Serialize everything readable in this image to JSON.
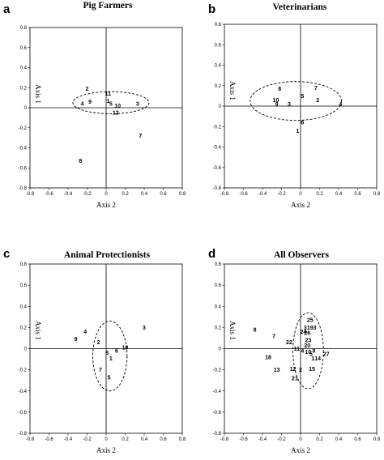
{
  "chart_data": [
    {
      "type": "scatter",
      "panel_label": "a",
      "title": "Pig Farmers",
      "xlabel": "Axis 2",
      "ylabel": "Axis 1",
      "xlim": [
        -0.8,
        0.8
      ],
      "ylim": [
        -0.8,
        0.8
      ],
      "x_ticks": [
        "-0.8",
        "-0.6",
        "-0.4",
        "-0.2",
        "0",
        "0.2",
        "0.4",
        "0.6",
        "0.8"
      ],
      "y_ticks": [
        "0.8",
        "0.6",
        "0.4",
        "0.2",
        "0",
        "-0.2",
        "-0.4",
        "-0.6",
        "-0.8"
      ],
      "points": [
        {
          "label": "2",
          "x": -0.2,
          "y": 0.19
        },
        {
          "label": "4",
          "x": -0.25,
          "y": 0.04
        },
        {
          "label": "9",
          "x": -0.17,
          "y": 0.06
        },
        {
          "label": "11",
          "x": 0.02,
          "y": 0.14
        },
        {
          "label": "1",
          "x": 0.02,
          "y": 0.07
        },
        {
          "label": "5",
          "x": 0.05,
          "y": 0.04
        },
        {
          "label": "10",
          "x": 0.12,
          "y": 0.02
        },
        {
          "label": "3",
          "x": 0.33,
          "y": 0.04
        },
        {
          "label": "12",
          "x": 0.1,
          "y": -0.05
        },
        {
          "label": "7",
          "x": 0.36,
          "y": -0.28
        },
        {
          "label": "8",
          "x": -0.27,
          "y": -0.53
        }
      ],
      "ellipse": {
        "cx": 0.05,
        "cy": 0.05,
        "rx": 0.4,
        "ry": 0.11
      }
    },
    {
      "type": "scatter",
      "panel_label": "b",
      "title": "Veterinarians",
      "xlabel": "Axis 2",
      "ylabel": "Axis 1",
      "xlim": [
        -0.8,
        0.8
      ],
      "ylim": [
        -0.8,
        0.8
      ],
      "x_ticks": [
        "-0.8",
        "-0.6",
        "-0.4",
        "-0.2",
        "0",
        "0.2",
        "0.4",
        "0.6",
        "0.8"
      ],
      "y_ticks": [
        "0.8",
        "0.6",
        "0.4",
        "0.2",
        "0",
        "-0.2",
        "-0.4",
        "-0.6",
        "-0.8"
      ],
      "points": [
        {
          "label": "8",
          "x": -0.22,
          "y": 0.17
        },
        {
          "label": "7",
          "x": 0.16,
          "y": 0.18
        },
        {
          "label": "5",
          "x": 0.02,
          "y": 0.1
        },
        {
          "label": "2",
          "x": 0.18,
          "y": 0.06
        },
        {
          "label": "10",
          "x": -0.26,
          "y": 0.06
        },
        {
          "label": "9",
          "x": -0.25,
          "y": 0.02
        },
        {
          "label": "3",
          "x": -0.12,
          "y": 0.02
        },
        {
          "label": "4",
          "x": 0.42,
          "y": 0.02
        },
        {
          "label": "6",
          "x": 0.02,
          "y": -0.16
        },
        {
          "label": "1",
          "x": -0.03,
          "y": -0.24
        }
      ],
      "ellipse": {
        "cx": -0.05,
        "cy": 0.05,
        "rx": 0.48,
        "ry": 0.19
      }
    },
    {
      "type": "scatter",
      "panel_label": "c",
      "title": "Animal Protectionists",
      "xlabel": "Axis 2",
      "ylabel": "Axis 1",
      "xlim": [
        -0.8,
        0.8
      ],
      "ylim": [
        -0.8,
        0.8
      ],
      "x_ticks": [
        "-0.8",
        "-0.6",
        "-0.4",
        "-0.2",
        "0",
        "0.2",
        "0.4",
        "0.6",
        "0.8"
      ],
      "y_ticks": [
        "0.8",
        "0.6",
        "0.4",
        "0.2",
        "0",
        "-0.2",
        "-0.4",
        "-0.6",
        "-0.8"
      ],
      "points": [
        {
          "label": "3",
          "x": 0.4,
          "y": 0.2
        },
        {
          "label": "4",
          "x": -0.22,
          "y": 0.16
        },
        {
          "label": "9",
          "x": -0.32,
          "y": 0.09
        },
        {
          "label": "2",
          "x": -0.08,
          "y": 0.06
        },
        {
          "label": "10",
          "x": 0.2,
          "y": 0.01
        },
        {
          "label": "6",
          "x": 0.11,
          "y": -0.02
        },
        {
          "label": "8",
          "x": 0.01,
          "y": -0.04
        },
        {
          "label": "1",
          "x": 0.05,
          "y": -0.09
        },
        {
          "label": "7",
          "x": -0.06,
          "y": -0.2
        },
        {
          "label": "5",
          "x": 0.03,
          "y": -0.27
        }
      ],
      "ellipse": {
        "cx": 0.04,
        "cy": -0.07,
        "rx": 0.18,
        "ry": 0.33
      }
    },
    {
      "type": "scatter",
      "panel_label": "d",
      "title": "All Observers",
      "xlabel": "Axis 2",
      "ylabel": "Axis 1",
      "xlim": [
        -0.8,
        0.8
      ],
      "ylim": [
        -0.8,
        0.8
      ],
      "x_ticks": [
        "-0.8",
        "-0.6",
        "-0.4",
        "-0.2",
        "0",
        "0.2",
        "0.4",
        "0.6",
        "0.8"
      ],
      "y_ticks": [
        "0.8",
        "0.6",
        "0.4",
        "0.2",
        "0",
        "-0.2",
        "-0.4",
        "-0.6",
        "-0.8"
      ],
      "points": [
        {
          "label": "25",
          "x": 0.1,
          "y": 0.27
        },
        {
          "label": "3",
          "x": 0.05,
          "y": 0.2
        },
        {
          "label": "19",
          "x": 0.1,
          "y": 0.2
        },
        {
          "label": "3",
          "x": 0.15,
          "y": 0.2
        },
        {
          "label": "8",
          "x": -0.48,
          "y": 0.18
        },
        {
          "label": "24",
          "x": 0.03,
          "y": 0.16
        },
        {
          "label": "26",
          "x": 0.07,
          "y": 0.15
        },
        {
          "label": "7",
          "x": -0.28,
          "y": 0.12
        },
        {
          "label": "23",
          "x": 0.08,
          "y": 0.08
        },
        {
          "label": "22",
          "x": -0.12,
          "y": 0.06
        },
        {
          "label": "20",
          "x": 0.07,
          "y": 0.03
        },
        {
          "label": "11",
          "x": -0.04,
          "y": 0.0
        },
        {
          "label": "4",
          "x": 0.02,
          "y": -0.02
        },
        {
          "label": "10",
          "x": 0.08,
          "y": -0.03
        },
        {
          "label": "9",
          "x": 0.14,
          "y": -0.02
        },
        {
          "label": "5",
          "x": 0.11,
          "y": -0.05
        },
        {
          "label": "27",
          "x": 0.27,
          "y": -0.05
        },
        {
          "label": "18",
          "x": -0.34,
          "y": -0.08
        },
        {
          "label": "1",
          "x": 0.13,
          "y": -0.09
        },
        {
          "label": "14",
          "x": 0.18,
          "y": -0.09
        },
        {
          "label": "12",
          "x": -0.08,
          "y": -0.19
        },
        {
          "label": "2",
          "x": 0.0,
          "y": -0.2
        },
        {
          "label": "15",
          "x": 0.12,
          "y": -0.19
        },
        {
          "label": "13",
          "x": -0.25,
          "y": -0.2
        },
        {
          "label": "21",
          "x": -0.06,
          "y": -0.28
        }
      ],
      "ellipse": {
        "cx": 0.08,
        "cy": -0.02,
        "rx": 0.16,
        "ry": 0.36
      }
    }
  ]
}
